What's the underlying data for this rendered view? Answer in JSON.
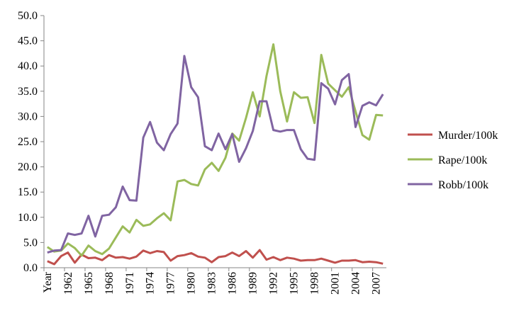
{
  "chart_data": {
    "type": "line",
    "categories": [
      "Year",
      null,
      null,
      "1962",
      null,
      null,
      "1965",
      null,
      null,
      "1968",
      null,
      null,
      "1971",
      null,
      null,
      "1974",
      null,
      null,
      "1977",
      null,
      null,
      "1980",
      null,
      null,
      "1983",
      null,
      null,
      "1986",
      null,
      null,
      "1989",
      null,
      null,
      "1992",
      null,
      null,
      "1995",
      null,
      null,
      "1998",
      null,
      null,
      "2001",
      null,
      null,
      "2004",
      null,
      null,
      "2007",
      null
    ],
    "series": [
      {
        "name": "Murder/100k",
        "color": "#c0504d",
        "values": [
          1.3,
          0.7,
          2.3,
          3.0,
          1.0,
          2.6,
          1.9,
          2.0,
          1.5,
          2.5,
          2.0,
          2.1,
          1.8,
          2.2,
          3.4,
          2.9,
          3.3,
          3.1,
          1.4,
          2.3,
          2.5,
          2.9,
          2.2,
          2.0,
          1.1,
          2.1,
          2.3,
          3.0,
          2.3,
          3.3,
          2.0,
          3.5,
          1.6,
          2.1,
          1.5,
          2.0,
          1.8,
          1.4,
          1.5,
          1.5,
          1.8,
          1.4,
          1.0,
          1.4,
          1.4,
          1.5,
          1.1,
          1.2,
          1.1,
          0.8
        ]
      },
      {
        "name": "Rape/100k",
        "color": "#9bbb59",
        "values": [
          4.1,
          3.2,
          3.4,
          4.8,
          3.9,
          2.4,
          4.4,
          3.3,
          2.7,
          3.8,
          6.0,
          8.2,
          7.0,
          9.5,
          8.3,
          8.6,
          9.8,
          10.8,
          9.4,
          17.1,
          17.4,
          16.6,
          16.3,
          19.5,
          20.8,
          19.2,
          21.8,
          26.6,
          25.2,
          29.7,
          34.8,
          30.0,
          38.0,
          44.3,
          35.0,
          29.0,
          34.8,
          33.7,
          33.8,
          28.7,
          42.2,
          36.5,
          35.2,
          33.9,
          35.8,
          31.0,
          26.3,
          25.4,
          30.3,
          30.2
        ]
      },
      {
        "name": "Robb/100k",
        "color": "#8064a2",
        "values": [
          3.0,
          3.4,
          3.5,
          6.8,
          6.5,
          6.8,
          10.3,
          6.2,
          10.3,
          10.5,
          12.0,
          16.1,
          13.4,
          13.3,
          25.8,
          28.9,
          24.8,
          23.3,
          26.5,
          28.6,
          42.0,
          35.8,
          33.8,
          24.1,
          23.3,
          26.6,
          23.5,
          26.5,
          21.0,
          23.7,
          27.1,
          33.0,
          33.0,
          27.3,
          27.0,
          27.3,
          27.3,
          23.5,
          21.6,
          21.4,
          36.6,
          35.5,
          32.4,
          37.2,
          38.4,
          27.9,
          32.1,
          32.8,
          32.2,
          34.4
        ]
      }
    ],
    "ylim": [
      0,
      50
    ],
    "yticks": [
      {
        "value": 0,
        "label": "0.0"
      },
      {
        "value": 5,
        "label": "5.0"
      },
      {
        "value": 10,
        "label": "10.0"
      },
      {
        "value": 15,
        "label": "15.0"
      },
      {
        "value": 20,
        "label": "20.0"
      },
      {
        "value": 25,
        "label": "25.0"
      },
      {
        "value": 30,
        "label": "30.0"
      },
      {
        "value": 35,
        "label": "35.0"
      },
      {
        "value": 40,
        "label": "40.0"
      },
      {
        "value": 45,
        "label": "45.0"
      },
      {
        "value": 50,
        "label": "50.0"
      }
    ],
    "legend": "right",
    "grid": false
  }
}
